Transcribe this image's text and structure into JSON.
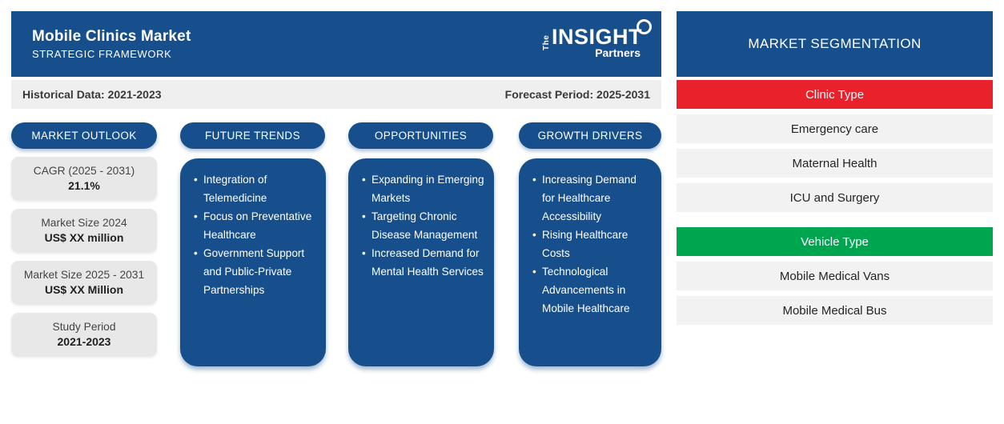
{
  "header": {
    "title": "Mobile Clinics Market",
    "subtitle": "STRATEGIC FRAMEWORK",
    "logo_the": "The",
    "logo_insight": "INSIGHT",
    "logo_partners": "Partners"
  },
  "period_bar": {
    "historical": "Historical Data: 2021-2023",
    "forecast": "Forecast Period: 2025-2031"
  },
  "columns": {
    "market_outlook": {
      "title": "MARKET OUTLOOK",
      "cards": [
        {
          "label": "CAGR (2025 - 2031)",
          "value": "21.1%"
        },
        {
          "label": "Market Size 2024",
          "value": "US$ XX million"
        },
        {
          "label": "Market Size 2025 - 2031",
          "value": "US$ XX Million"
        },
        {
          "label": "Study Period",
          "value": "2021-2023"
        }
      ]
    },
    "future_trends": {
      "title": "FUTURE TRENDS",
      "items": [
        "Integration of Telemedicine",
        "Focus on Preventative Healthcare",
        "Government Support and Public-Private Partnerships"
      ]
    },
    "opportunities": {
      "title": "OPPORTUNITIES",
      "items": [
        "Expanding in Emerging Markets",
        "Targeting Chronic Disease Management",
        "Increased Demand for Mental Health Services"
      ]
    },
    "growth_drivers": {
      "title": "GROWTH DRIVERS",
      "items": [
        "Increasing Demand for Healthcare Accessibility",
        "Rising Healthcare Costs",
        "Technological Advancements in Mobile Healthcare"
      ]
    }
  },
  "segmentation": {
    "title": "MARKET SEGMENTATION",
    "groups": [
      {
        "name": "Clinic Type",
        "color": "#e8212b",
        "items": [
          "Emergency care",
          "Maternal Health",
          "ICU and Surgery"
        ]
      },
      {
        "name": "Vehicle Type",
        "color": "#00a550",
        "items": [
          "Mobile Medical Vans",
          "Mobile Medical Bus"
        ]
      }
    ]
  },
  "colors": {
    "primary_blue": "#174f8c",
    "clinic_red": "#e8212b",
    "vehicle_green": "#00a550",
    "period_bar_gray": "#efefef",
    "card_gray": "#e8e8e8",
    "row_gray": "#f2f2f2"
  }
}
